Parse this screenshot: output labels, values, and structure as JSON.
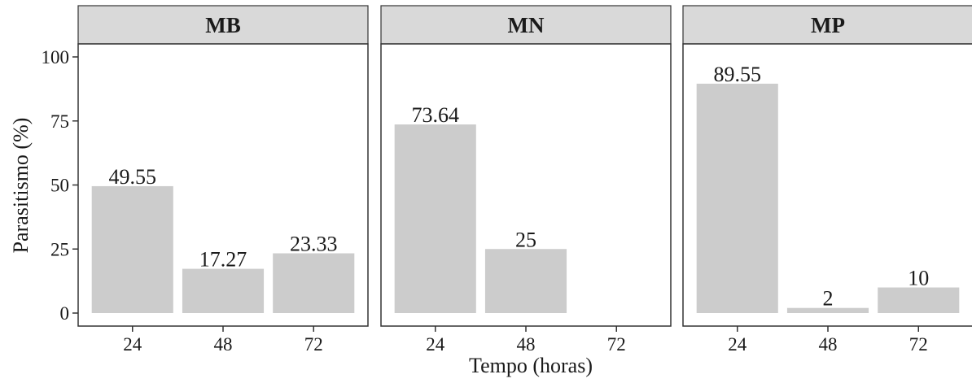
{
  "chart_data": {
    "type": "bar",
    "xlabel": "Tempo (horas)",
    "ylabel": "Parasitismo (%)",
    "ylim": [
      0,
      110
    ],
    "yticks": [
      0,
      25,
      50,
      75,
      100
    ],
    "categories": [
      "24",
      "48",
      "72"
    ],
    "bar_color": "#cccccc",
    "strip_color": "#d9d9d9",
    "grid": false,
    "panels": [
      {
        "name": "MB",
        "values": [
          49.55,
          17.27,
          23.33
        ],
        "labels": [
          "49.55",
          "17.27",
          "23.33"
        ]
      },
      {
        "name": "MN",
        "values": [
          73.64,
          25,
          0
        ],
        "labels": [
          "73.64",
          "25",
          ""
        ]
      },
      {
        "name": "MP",
        "values": [
          89.55,
          2,
          10
        ],
        "labels": [
          "89.55",
          "2",
          "10"
        ]
      }
    ]
  }
}
